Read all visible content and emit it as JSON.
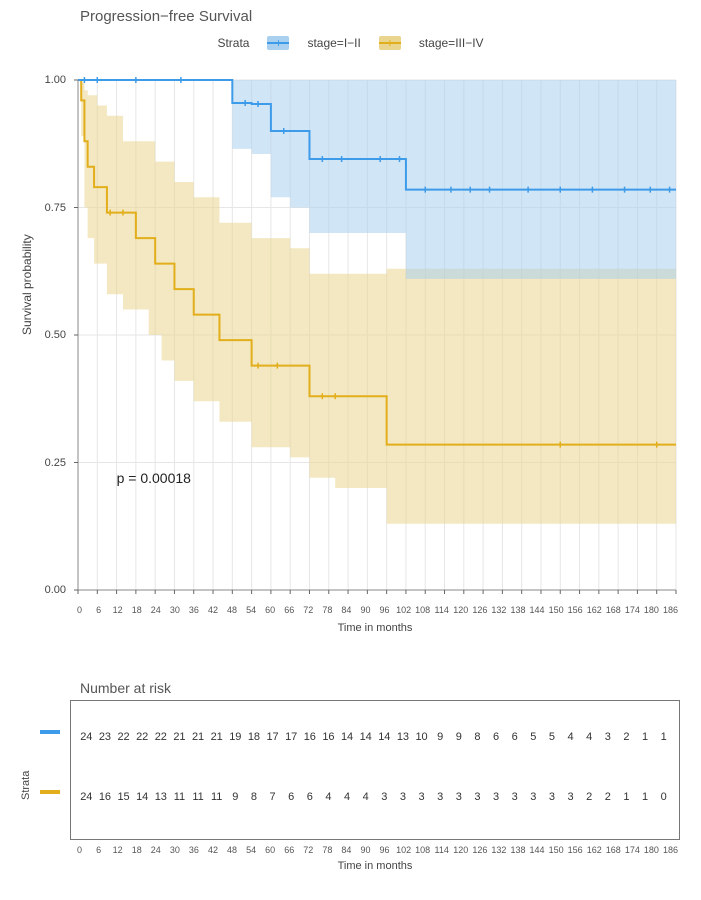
{
  "chart": {
    "type": "kaplan-meier",
    "title": "Progression−free Survival",
    "xlabel": "Time in months",
    "ylabel": "Survival probability",
    "xlim": [
      0,
      186
    ],
    "ylim": [
      0.0,
      1.0
    ],
    "xticks": [
      0,
      6,
      12,
      18,
      24,
      30,
      36,
      42,
      48,
      54,
      60,
      66,
      72,
      78,
      84,
      90,
      96,
      102,
      108,
      114,
      120,
      126,
      132,
      138,
      144,
      150,
      156,
      162,
      168,
      174,
      180,
      186
    ],
    "yticks": [
      0.0,
      0.25,
      0.5,
      0.75,
      1.0
    ],
    "ytick_labels": [
      "0.00",
      "0.25",
      "0.50",
      "0.75",
      "1.00"
    ],
    "background_color": "#ffffff",
    "grid_color": "#e6e6e6",
    "border_color": "#777777",
    "title_fontsize": 15,
    "axis_label_fontsize": 12,
    "tick_fontsize": 9,
    "p_value_text": "p = 0.00018",
    "p_value_pos": {
      "x_months": 12,
      "y_prob": 0.22
    },
    "legend": {
      "title": "Strata",
      "items": [
        {
          "label": "stage=I−II",
          "line_color": "#3d9be9",
          "fill_color": "#a9d0ef",
          "fill_opacity": 0.55
        },
        {
          "label": "stage=III−IV",
          "line_color": "#e2ae1b",
          "fill_color": "#e9d58e",
          "fill_opacity": 0.55
        }
      ]
    },
    "series": [
      {
        "name": "stage=I-II",
        "line_color": "#3d9be9",
        "line_width": 2,
        "ci_fill": "#a9d0ef",
        "ci_opacity": 0.55,
        "step_points": [
          {
            "t": 0,
            "s": 1.0
          },
          {
            "t": 48,
            "s": 1.0
          },
          {
            "t": 48,
            "s": 0.955
          },
          {
            "t": 54,
            "s": 0.955
          },
          {
            "t": 54,
            "s": 0.953
          },
          {
            "t": 60,
            "s": 0.953
          },
          {
            "t": 60,
            "s": 0.9
          },
          {
            "t": 72,
            "s": 0.9
          },
          {
            "t": 72,
            "s": 0.845
          },
          {
            "t": 102,
            "s": 0.845
          },
          {
            "t": 102,
            "s": 0.785
          },
          {
            "t": 186,
            "s": 0.785
          }
        ],
        "censor_marks_t": [
          2,
          6,
          18,
          32,
          52,
          56,
          64,
          76,
          82,
          94,
          100,
          108,
          116,
          122,
          128,
          140,
          150,
          160,
          170,
          178,
          184
        ],
        "ci_upper_points": [
          {
            "t": 0,
            "s": 1.0
          },
          {
            "t": 186,
            "s": 1.0
          }
        ],
        "ci_lower_points": [
          {
            "t": 0,
            "s": 1.0
          },
          {
            "t": 48,
            "s": 1.0
          },
          {
            "t": 48,
            "s": 0.865
          },
          {
            "t": 54,
            "s": 0.865
          },
          {
            "t": 54,
            "s": 0.855
          },
          {
            "t": 60,
            "s": 0.855
          },
          {
            "t": 60,
            "s": 0.77
          },
          {
            "t": 66,
            "s": 0.77
          },
          {
            "t": 66,
            "s": 0.75
          },
          {
            "t": 72,
            "s": 0.75
          },
          {
            "t": 72,
            "s": 0.7
          },
          {
            "t": 102,
            "s": 0.7
          },
          {
            "t": 102,
            "s": 0.61
          },
          {
            "t": 186,
            "s": 0.61
          }
        ]
      },
      {
        "name": "stage=III-IV",
        "line_color": "#e2ae1b",
        "line_width": 2,
        "ci_fill": "#e9d58e",
        "ci_opacity": 0.55,
        "step_points": [
          {
            "t": 0,
            "s": 1.0
          },
          {
            "t": 1,
            "s": 1.0
          },
          {
            "t": 1,
            "s": 0.96
          },
          {
            "t": 2,
            "s": 0.96
          },
          {
            "t": 2,
            "s": 0.88
          },
          {
            "t": 3,
            "s": 0.88
          },
          {
            "t": 3,
            "s": 0.83
          },
          {
            "t": 5,
            "s": 0.83
          },
          {
            "t": 5,
            "s": 0.79
          },
          {
            "t": 9,
            "s": 0.79
          },
          {
            "t": 9,
            "s": 0.74
          },
          {
            "t": 18,
            "s": 0.74
          },
          {
            "t": 18,
            "s": 0.69
          },
          {
            "t": 24,
            "s": 0.69
          },
          {
            "t": 24,
            "s": 0.64
          },
          {
            "t": 30,
            "s": 0.64
          },
          {
            "t": 30,
            "s": 0.59
          },
          {
            "t": 36,
            "s": 0.59
          },
          {
            "t": 36,
            "s": 0.54
          },
          {
            "t": 44,
            "s": 0.54
          },
          {
            "t": 44,
            "s": 0.49
          },
          {
            "t": 54,
            "s": 0.49
          },
          {
            "t": 54,
            "s": 0.44
          },
          {
            "t": 72,
            "s": 0.44
          },
          {
            "t": 72,
            "s": 0.38
          },
          {
            "t": 96,
            "s": 0.38
          },
          {
            "t": 96,
            "s": 0.285
          },
          {
            "t": 186,
            "s": 0.285
          }
        ],
        "censor_marks_t": [
          10,
          14,
          56,
          62,
          76,
          80,
          150,
          180
        ],
        "ci_upper_points": [
          {
            "t": 0,
            "s": 1.0
          },
          {
            "t": 1,
            "s": 1.0
          },
          {
            "t": 1,
            "s": 0.995
          },
          {
            "t": 2,
            "s": 0.995
          },
          {
            "t": 2,
            "s": 0.98
          },
          {
            "t": 3,
            "s": 0.98
          },
          {
            "t": 3,
            "s": 0.97
          },
          {
            "t": 6,
            "s": 0.97
          },
          {
            "t": 6,
            "s": 0.95
          },
          {
            "t": 9,
            "s": 0.95
          },
          {
            "t": 9,
            "s": 0.93
          },
          {
            "t": 14,
            "s": 0.93
          },
          {
            "t": 14,
            "s": 0.88
          },
          {
            "t": 24,
            "s": 0.88
          },
          {
            "t": 24,
            "s": 0.84
          },
          {
            "t": 30,
            "s": 0.84
          },
          {
            "t": 30,
            "s": 0.8
          },
          {
            "t": 36,
            "s": 0.8
          },
          {
            "t": 36,
            "s": 0.77
          },
          {
            "t": 44,
            "s": 0.77
          },
          {
            "t": 44,
            "s": 0.72
          },
          {
            "t": 54,
            "s": 0.72
          },
          {
            "t": 54,
            "s": 0.69
          },
          {
            "t": 66,
            "s": 0.69
          },
          {
            "t": 66,
            "s": 0.67
          },
          {
            "t": 72,
            "s": 0.67
          },
          {
            "t": 72,
            "s": 0.62
          },
          {
            "t": 96,
            "s": 0.62
          },
          {
            "t": 96,
            "s": 0.63
          },
          {
            "t": 108,
            "s": 0.63
          },
          {
            "t": 108,
            "s": 0.63
          },
          {
            "t": 186,
            "s": 0.63
          }
        ],
        "ci_lower_points": [
          {
            "t": 0,
            "s": 1.0
          },
          {
            "t": 1,
            "s": 1.0
          },
          {
            "t": 1,
            "s": 0.89
          },
          {
            "t": 2,
            "s": 0.89
          },
          {
            "t": 2,
            "s": 0.75
          },
          {
            "t": 3,
            "s": 0.75
          },
          {
            "t": 3,
            "s": 0.69
          },
          {
            "t": 5,
            "s": 0.69
          },
          {
            "t": 5,
            "s": 0.64
          },
          {
            "t": 9,
            "s": 0.64
          },
          {
            "t": 9,
            "s": 0.58
          },
          {
            "t": 14,
            "s": 0.58
          },
          {
            "t": 14,
            "s": 0.55
          },
          {
            "t": 22,
            "s": 0.55
          },
          {
            "t": 22,
            "s": 0.5
          },
          {
            "t": 26,
            "s": 0.5
          },
          {
            "t": 26,
            "s": 0.45
          },
          {
            "t": 30,
            "s": 0.45
          },
          {
            "t": 30,
            "s": 0.41
          },
          {
            "t": 36,
            "s": 0.41
          },
          {
            "t": 36,
            "s": 0.37
          },
          {
            "t": 44,
            "s": 0.37
          },
          {
            "t": 44,
            "s": 0.33
          },
          {
            "t": 54,
            "s": 0.33
          },
          {
            "t": 54,
            "s": 0.28
          },
          {
            "t": 66,
            "s": 0.28
          },
          {
            "t": 66,
            "s": 0.26
          },
          {
            "t": 72,
            "s": 0.26
          },
          {
            "t": 72,
            "s": 0.22
          },
          {
            "t": 80,
            "s": 0.22
          },
          {
            "t": 80,
            "s": 0.2
          },
          {
            "t": 96,
            "s": 0.2
          },
          {
            "t": 96,
            "s": 0.13
          },
          {
            "t": 186,
            "s": 0.13
          }
        ]
      }
    ]
  },
  "risk_table": {
    "title": "Number at risk",
    "strata_axis_label": "Strata",
    "xlabel": "Time in months",
    "xticks": [
      0,
      6,
      12,
      18,
      24,
      30,
      36,
      42,
      48,
      54,
      60,
      66,
      72,
      78,
      84,
      90,
      96,
      102,
      108,
      114,
      120,
      126,
      132,
      138,
      144,
      150,
      156,
      162,
      168,
      174,
      180,
      186
    ],
    "rows": [
      {
        "color": "#3d9be9",
        "counts": [
          24,
          23,
          22,
          22,
          22,
          21,
          21,
          21,
          19,
          18,
          17,
          17,
          16,
          16,
          14,
          14,
          14,
          13,
          10,
          9,
          9,
          8,
          6,
          6,
          5,
          5,
          4,
          4,
          3,
          2,
          1,
          1
        ]
      },
      {
        "color": "#e2ae1b",
        "counts": [
          24,
          16,
          15,
          14,
          13,
          11,
          11,
          11,
          9,
          8,
          7,
          6,
          6,
          4,
          4,
          4,
          3,
          3,
          3,
          3,
          3,
          3,
          3,
          3,
          3,
          3,
          3,
          2,
          2,
          1,
          1,
          0
        ]
      }
    ],
    "border_color": "#777777",
    "font_size": 11
  }
}
